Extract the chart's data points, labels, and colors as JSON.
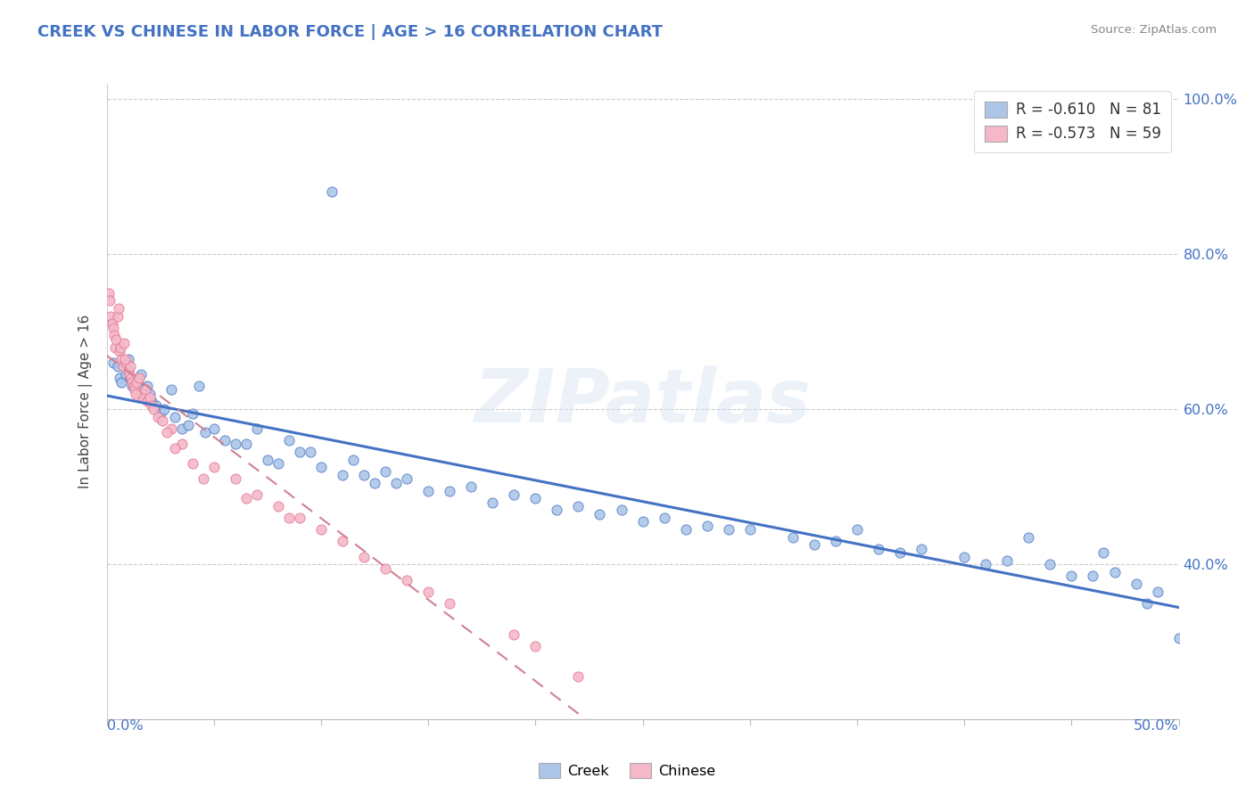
{
  "title": "CREEK VS CHINESE IN LABOR FORCE | AGE > 16 CORRELATION CHART",
  "source": "Source: ZipAtlas.com",
  "ylabel": "In Labor Force | Age > 16",
  "xlim": [
    0.0,
    50.0
  ],
  "ylim": [
    20.0,
    102.0
  ],
  "creek_R": -0.61,
  "creek_N": 81,
  "chinese_R": -0.573,
  "chinese_N": 59,
  "creek_dot_color": "#adc6e8",
  "creek_line_color": "#4472c4",
  "chinese_dot_color": "#f5b8c8",
  "chinese_line_color": "#e07090",
  "watermark": "ZIPatlas",
  "creek_x": [
    0.3,
    0.5,
    0.6,
    0.7,
    0.9,
    1.0,
    1.1,
    1.2,
    1.4,
    1.5,
    1.6,
    1.7,
    1.8,
    1.9,
    2.0,
    2.1,
    2.3,
    2.5,
    2.7,
    3.0,
    3.2,
    3.5,
    3.8,
    4.0,
    4.3,
    4.6,
    5.0,
    5.5,
    6.0,
    6.5,
    7.0,
    7.5,
    8.0,
    8.5,
    9.0,
    9.5,
    10.0,
    11.0,
    11.5,
    12.0,
    12.5,
    13.0,
    13.5,
    14.0,
    15.0,
    16.0,
    17.0,
    18.0,
    19.0,
    20.0,
    21.0,
    22.0,
    23.0,
    24.0,
    25.0,
    26.0,
    27.0,
    28.0,
    30.0,
    32.0,
    34.0,
    35.0,
    36.0,
    38.0,
    40.0,
    42.0,
    44.0,
    45.0,
    46.0,
    47.0,
    48.0,
    49.0,
    50.0,
    10.5,
    29.0,
    33.0,
    37.0,
    41.0,
    43.0,
    46.5,
    48.5
  ],
  "creek_y": [
    66.0,
    65.5,
    64.0,
    63.5,
    64.5,
    66.5,
    64.0,
    63.0,
    62.5,
    63.0,
    64.5,
    62.5,
    61.5,
    63.0,
    62.0,
    61.0,
    60.5,
    59.5,
    60.0,
    62.5,
    59.0,
    57.5,
    58.0,
    59.5,
    63.0,
    57.0,
    57.5,
    56.0,
    55.5,
    55.5,
    57.5,
    53.5,
    53.0,
    56.0,
    54.5,
    54.5,
    52.5,
    51.5,
    53.5,
    51.5,
    50.5,
    52.0,
    50.5,
    51.0,
    49.5,
    49.5,
    50.0,
    48.0,
    49.0,
    48.5,
    47.0,
    47.5,
    46.5,
    47.0,
    45.5,
    46.0,
    44.5,
    45.0,
    44.5,
    43.5,
    43.0,
    44.5,
    42.0,
    42.0,
    41.0,
    40.5,
    40.0,
    38.5,
    38.5,
    39.0,
    37.5,
    36.5,
    30.5,
    88.0,
    44.5,
    42.5,
    41.5,
    40.0,
    43.5,
    41.5,
    35.0
  ],
  "chinese_x": [
    0.1,
    0.15,
    0.2,
    0.25,
    0.3,
    0.35,
    0.4,
    0.45,
    0.5,
    0.55,
    0.6,
    0.65,
    0.7,
    0.75,
    0.8,
    0.9,
    1.0,
    1.05,
    1.1,
    1.15,
    1.2,
    1.25,
    1.3,
    1.4,
    1.5,
    1.6,
    1.7,
    1.8,
    1.9,
    2.0,
    2.1,
    2.2,
    2.4,
    2.6,
    3.0,
    3.5,
    4.0,
    5.0,
    6.0,
    7.0,
    8.0,
    9.0,
    10.0,
    11.0,
    12.0,
    13.0,
    14.0,
    15.0,
    16.0,
    19.0,
    22.0,
    2.8,
    0.85,
    1.35,
    3.2,
    4.5,
    6.5,
    8.5,
    20.0
  ],
  "chinese_y": [
    75.0,
    74.0,
    72.0,
    71.0,
    70.5,
    69.5,
    68.0,
    69.0,
    72.0,
    73.0,
    67.5,
    68.0,
    66.5,
    65.5,
    68.5,
    66.0,
    65.0,
    64.5,
    65.5,
    64.0,
    63.5,
    63.0,
    62.5,
    63.5,
    64.0,
    62.0,
    61.5,
    62.5,
    61.0,
    61.5,
    60.5,
    60.0,
    59.0,
    58.5,
    57.5,
    55.5,
    53.0,
    52.5,
    51.0,
    49.0,
    47.5,
    46.0,
    44.5,
    43.0,
    41.0,
    39.5,
    38.0,
    36.5,
    35.0,
    31.0,
    25.5,
    57.0,
    66.5,
    62.0,
    55.0,
    51.0,
    48.5,
    46.0,
    29.5
  ]
}
